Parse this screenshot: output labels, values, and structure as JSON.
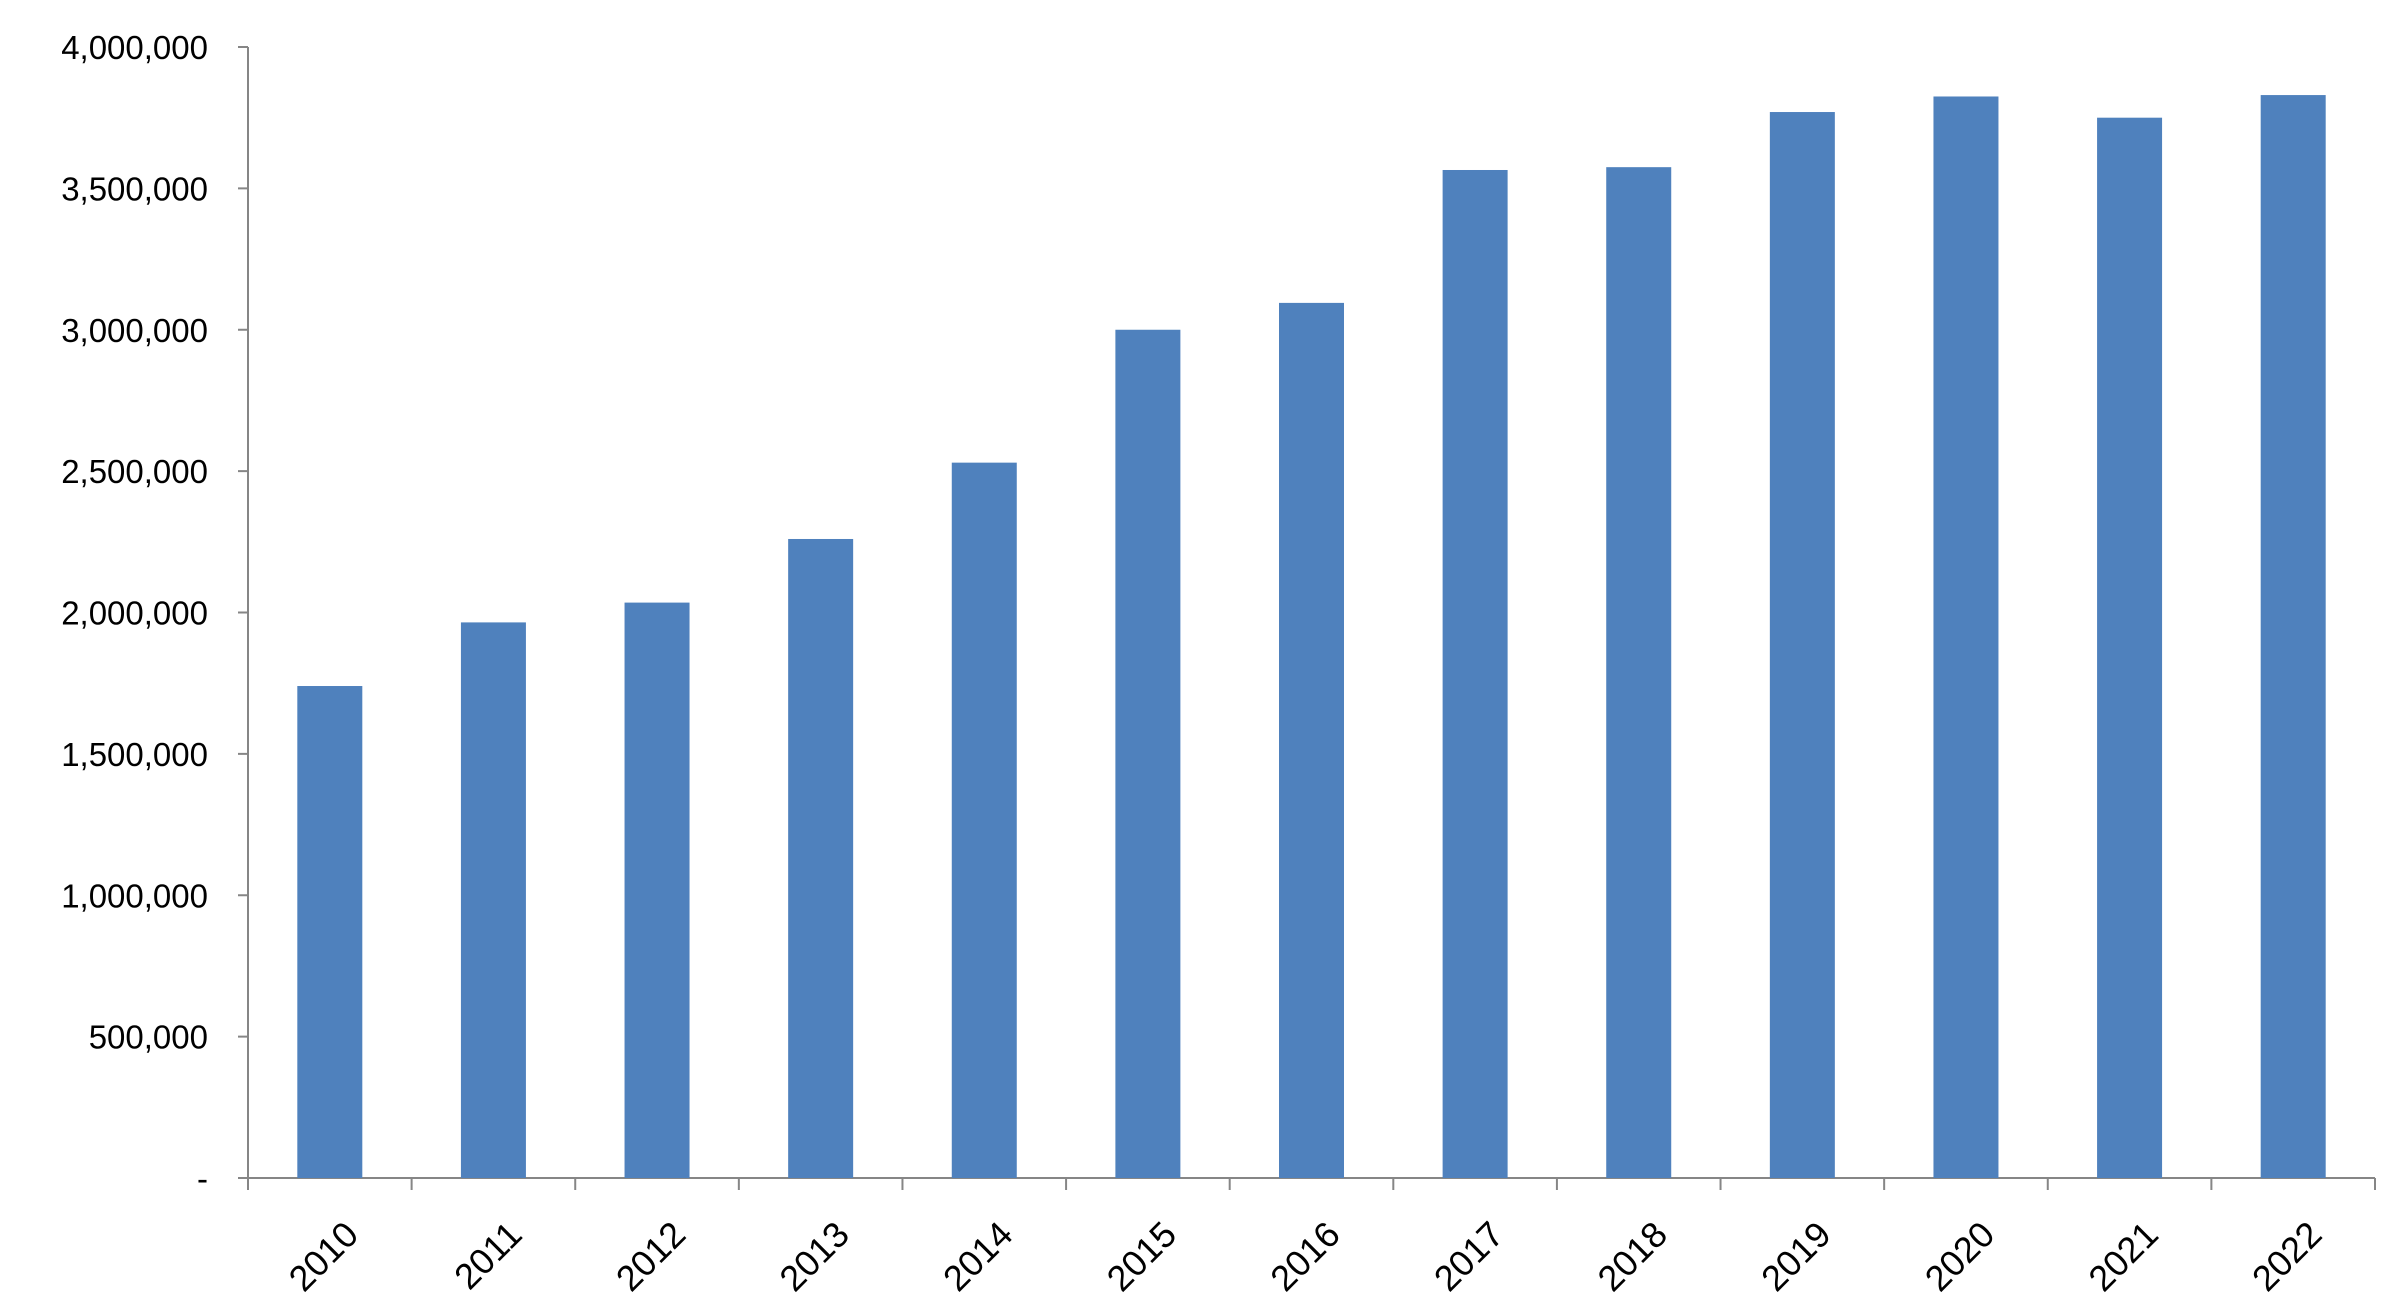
{
  "chart_data": {
    "type": "bar",
    "categories": [
      "2010",
      "2011",
      "2012",
      "2013",
      "2014",
      "2015",
      "2016",
      "2017",
      "2018",
      "2019",
      "2020",
      "2021",
      "2022"
    ],
    "values": [
      1740000,
      1965000,
      2035000,
      2260000,
      2530000,
      3000000,
      3095000,
      3565000,
      3575000,
      3770000,
      3825000,
      3750000,
      3830000
    ],
    "color": "#4f81bd",
    "ylim": [
      0,
      4000000
    ],
    "yticks": [
      {
        "value": 0,
        "label": "-"
      },
      {
        "value": 500000,
        "label": "500,000"
      },
      {
        "value": 1000000,
        "label": "1,000,000"
      },
      {
        "value": 1500000,
        "label": "1,500,000"
      },
      {
        "value": 2000000,
        "label": "2,000,000"
      },
      {
        "value": 2500000,
        "label": "2,500,000"
      },
      {
        "value": 3000000,
        "label": "3,000,000"
      },
      {
        "value": 3500000,
        "label": "3,500,000"
      },
      {
        "value": 4000000,
        "label": "4,000,000"
      }
    ]
  }
}
